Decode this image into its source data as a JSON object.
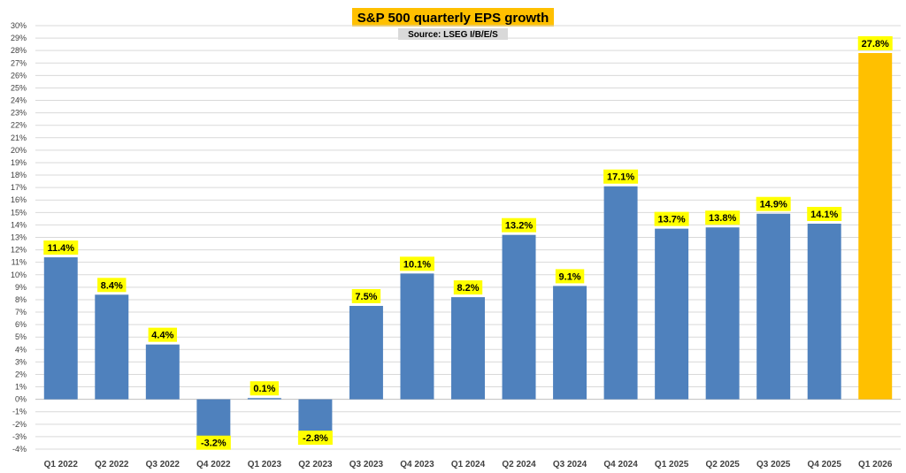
{
  "chart_data": {
    "type": "bar",
    "title": "S&P 500 quarterly EPS growth",
    "subtitle": "Source: LSEG I/B/E/S",
    "xlabel": "",
    "ylabel": "",
    "ylim": [
      -4,
      30
    ],
    "ytick_step": 1,
    "ytick_suffix": "%",
    "grid": true,
    "categories": [
      "Q1 2022",
      "Q2 2022",
      "Q3 2022",
      "Q4 2022",
      "Q1 2023",
      "Q2 2023",
      "Q3 2023",
      "Q4 2023",
      "Q1 2024",
      "Q2 2024",
      "Q3 2024",
      "Q4 2024",
      "Q1 2025",
      "Q2 2025",
      "Q3 2025",
      "Q4 2025",
      "Q1 2026"
    ],
    "values": [
      11.4,
      8.4,
      4.4,
      -3.2,
      0.1,
      -2.8,
      7.5,
      10.1,
      8.2,
      13.2,
      9.1,
      17.1,
      13.7,
      13.8,
      14.9,
      14.1,
      27.8
    ],
    "data_labels": [
      "11.4%",
      "8.4%",
      "4.4%",
      "-3.2%",
      "0.1%",
      "-2.8%",
      "7.5%",
      "10.1%",
      "8.2%",
      "13.2%",
      "9.1%",
      "17.1%",
      "13.7%",
      "13.8%",
      "14.9%",
      "14.1%",
      "27.8%"
    ],
    "colors": {
      "bar": "#4f81bd",
      "highlight_bar": "#ffc000",
      "label_background": "#ffff00",
      "title_background": "#ffc000",
      "subtitle_background": "#d9d9d9"
    },
    "highlight_category": "Q1 2026"
  }
}
